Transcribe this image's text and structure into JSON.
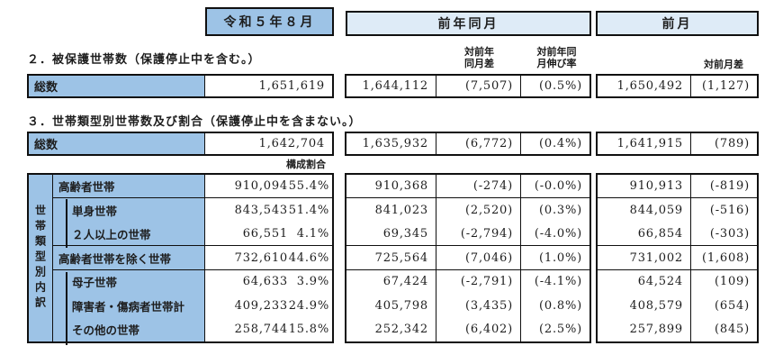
{
  "period_headers": {
    "current": "令和５年８月",
    "prev_year": "前年同月",
    "prev_month": "前月"
  },
  "column_headers": {
    "prev_year_diff": "対前年\n同月差",
    "prev_year_rate": "対前年同\n月伸び率",
    "prev_month_diff": "対前月差",
    "composition": "構成割合"
  },
  "section2": {
    "title": "２．被保護世帯数（保護停止中を含む。）",
    "row_label": "総数",
    "current": "1,651,619",
    "prev_year": "1,644,112",
    "prev_year_diff": "(7,507)",
    "prev_year_rate": "(0.5%)",
    "prev_month": "1,650,492",
    "prev_month_diff": "(1,127)"
  },
  "section3": {
    "title": "３．世帯類型別世帯数及び割合（保護停止中を含まない。）",
    "row_label": "総数",
    "current": "1,642,704",
    "prev_year": "1,635,932",
    "prev_year_diff": "(6,772)",
    "prev_year_rate": "(0.4%)",
    "prev_month": "1,641,915",
    "prev_month_diff": "(789)"
  },
  "main_table": {
    "side_label": "世帯類型別内訳",
    "rows": [
      {
        "label": "高齢者世帯",
        "current": "910,094",
        "share": "55.4%",
        "prev_year": "910,368",
        "prev_year_diff": "(-274)",
        "prev_year_rate": "(-0.0%)",
        "prev_month": "910,913",
        "prev_month_diff": "(-819)"
      },
      {
        "label": "単身世帯",
        "current": "843,543",
        "share": "51.4%",
        "prev_year": "841,023",
        "prev_year_diff": "(2,520)",
        "prev_year_rate": "(0.3%)",
        "prev_month": "844,059",
        "prev_month_diff": "(-516)"
      },
      {
        "label": "２人以上の世帯",
        "current": "66,551",
        "share": "4.1%",
        "prev_year": "69,345",
        "prev_year_diff": "(-2,794)",
        "prev_year_rate": "(-4.0%)",
        "prev_month": "66,854",
        "prev_month_diff": "(-303)"
      },
      {
        "label": "高齢者世帯を除く世帯",
        "current": "732,610",
        "share": "44.6%",
        "prev_year": "725,564",
        "prev_year_diff": "(7,046)",
        "prev_year_rate": "(1.0%)",
        "prev_month": "731,002",
        "prev_month_diff": "(1,608)"
      },
      {
        "label": "母子世帯",
        "current": "64,633",
        "share": "3.9%",
        "prev_year": "67,424",
        "prev_year_diff": "(-2,791)",
        "prev_year_rate": "(-4.1%)",
        "prev_month": "64,524",
        "prev_month_diff": "(109)"
      },
      {
        "label": "障害者・傷病者世帯計",
        "current": "409,233",
        "share": "24.9%",
        "prev_year": "405,798",
        "prev_year_diff": "(3,435)",
        "prev_year_rate": "(0.8%)",
        "prev_month": "408,579",
        "prev_month_diff": "(654)"
      },
      {
        "label": "その他の世帯",
        "current": "258,744",
        "share": "15.8%",
        "prev_year": "252,342",
        "prev_year_diff": "(6,402)",
        "prev_year_rate": "(2.5%)",
        "prev_month": "257,899",
        "prev_month_diff": "(845)"
      }
    ]
  },
  "colors": {
    "label_blue": "#9DC3E6",
    "header_light_blue": "#DEEBF7",
    "border": "#101010"
  }
}
